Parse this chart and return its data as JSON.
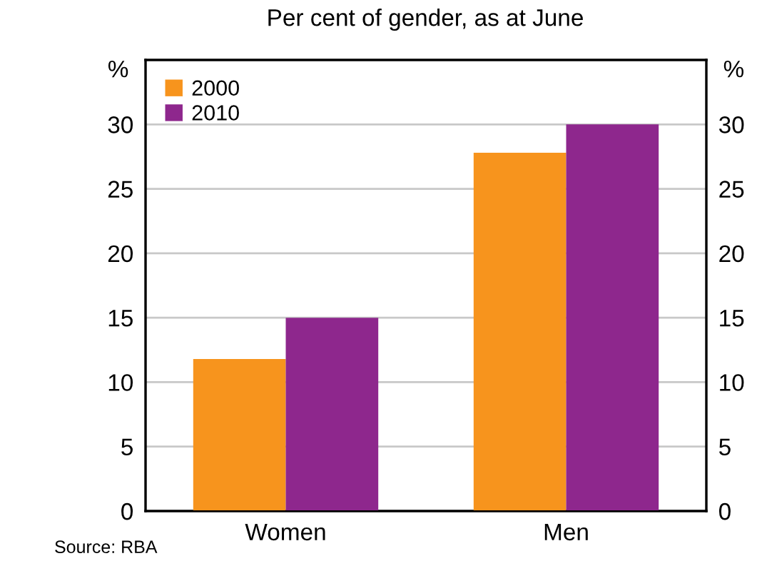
{
  "chart_data": {
    "type": "bar",
    "subtitle": "Per cent of gender, as at June",
    "ylabel": "%",
    "y2label": "%",
    "categories": [
      "Women",
      "Men"
    ],
    "series": [
      {
        "name": "2000",
        "color": "#f7941d",
        "values": [
          11.8,
          27.8
        ]
      },
      {
        "name": "2010",
        "color": "#8e278d",
        "values": [
          15,
          30
        ]
      }
    ],
    "ylim": [
      0,
      35
    ],
    "yticks": [
      0,
      5,
      10,
      15,
      20,
      25,
      30
    ],
    "y2lim": [
      0,
      35
    ],
    "y2ticks": [
      0,
      5,
      10,
      15,
      20,
      25,
      30
    ],
    "grid": "y",
    "legend": "top left",
    "annotations": [
      "Source: RBA"
    ]
  }
}
